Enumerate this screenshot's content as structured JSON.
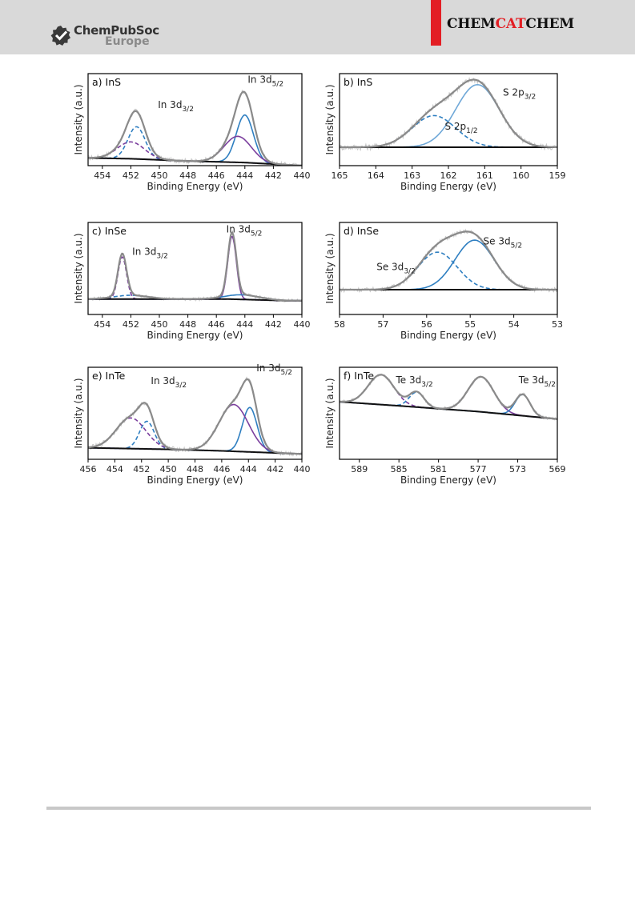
{
  "header": {
    "publisher_name": "ChemPubSoc",
    "publisher_region": "Europe",
    "journal": {
      "left": "CHEM",
      "middle": "CAT",
      "right": "CHEM"
    }
  },
  "colors": {
    "envelope": "#8a8a8a",
    "raw": "#c8c8c8",
    "background": "#111111",
    "component_blue": "#2f7fc1",
    "component_lightblue": "#6fa8d8",
    "component_purple": "#7b3f9e"
  },
  "chart_data": [
    {
      "label": "a) InS",
      "type": "line",
      "xlabel": "Binding Energy (eV)",
      "ylabel": "Intensity (a.u.)",
      "xlim": [
        455,
        440
      ],
      "ylim": [
        0,
        1.2
      ],
      "xticks": [
        454,
        452,
        450,
        448,
        446,
        444,
        442,
        440
      ],
      "tick_labels": [
        "454",
        "452",
        "450",
        "448",
        "446",
        "444",
        "442",
        "440"
      ],
      "background": [
        [
          455,
          0.1
        ],
        [
          452,
          0.09
        ],
        [
          448,
          0.06
        ],
        [
          444,
          0.04
        ],
        [
          441,
          0.01
        ],
        [
          440,
          0.0
        ]
      ],
      "peaks": [
        {
          "center": 451.6,
          "height": 0.42,
          "width": 0.6,
          "style": "dashed",
          "color": "blue"
        },
        {
          "center": 452.0,
          "height": 0.22,
          "width": 0.95,
          "style": "dashed",
          "color": "purple"
        },
        {
          "center": 444.0,
          "height": 0.62,
          "width": 0.6,
          "style": "solid",
          "color": "blue"
        },
        {
          "center": 444.5,
          "height": 0.34,
          "width": 0.95,
          "style": "solid",
          "color": "purple"
        }
      ],
      "noise": 0.03,
      "annotations": [
        {
          "base": "In 3d",
          "sub": "3/2",
          "x": 450.1,
          "y": 0.75
        },
        {
          "base": "In 3d",
          "sub": "5/2",
          "x": 443.8,
          "y": 1.08
        }
      ]
    },
    {
      "label": "b) InS",
      "type": "line",
      "xlabel": "Binding Energy (eV)",
      "ylabel": "Intensity (a.u.)",
      "xlim": [
        165,
        159
      ],
      "ylim": [
        -0.25,
        1.0
      ],
      "xticks": [
        165,
        164,
        163,
        162,
        161,
        160,
        159
      ],
      "tick_labels": [
        "165",
        "164",
        "163",
        "162",
        "161",
        "160",
        "159"
      ],
      "background": [
        [
          165,
          0.0
        ],
        [
          159,
          0.0
        ]
      ],
      "peaks": [
        {
          "center": 161.2,
          "height": 0.85,
          "width": 0.6,
          "style": "solid",
          "color": "lightblue"
        },
        {
          "center": 162.4,
          "height": 0.43,
          "width": 0.6,
          "style": "dashed",
          "color": "blue"
        }
      ],
      "noise": 0.04,
      "annotations": [
        {
          "base": "S 2p",
          "sub": "3/2",
          "x": 160.5,
          "y": 0.7
        },
        {
          "base": "S 2p",
          "sub": "1/2",
          "x": 162.1,
          "y": 0.24
        }
      ]
    },
    {
      "label": "c) InSe",
      "type": "line",
      "xlabel": "Binding Energy (eV)",
      "ylabel": "Intensity (a.u.)",
      "xlim": [
        455,
        440
      ],
      "ylim": [
        -0.2,
        1.0
      ],
      "xticks": [
        454,
        452,
        450,
        448,
        446,
        444,
        442,
        440
      ],
      "tick_labels": [
        "454",
        "452",
        "450",
        "448",
        "446",
        "444",
        "442",
        "440"
      ],
      "background": [
        [
          455,
          0.0
        ],
        [
          452,
          0.0
        ],
        [
          445,
          0.0
        ],
        [
          441,
          -0.02
        ],
        [
          440,
          -0.02
        ]
      ],
      "peaks": [
        {
          "center": 452.6,
          "height": 0.55,
          "width": 0.3,
          "style": "dashed",
          "color": "purple"
        },
        {
          "center": 452.0,
          "height": 0.05,
          "width": 1.2,
          "style": "dashed",
          "color": "blue"
        },
        {
          "center": 444.9,
          "height": 0.82,
          "width": 0.3,
          "style": "solid",
          "color": "purple"
        },
        {
          "center": 444.2,
          "height": 0.06,
          "width": 1.2,
          "style": "solid",
          "color": "blue"
        }
      ],
      "noise": 0.02,
      "annotations": [
        {
          "base": "In 3d",
          "sub": "3/2",
          "x": 451.9,
          "y": 0.58
        },
        {
          "base": "In 3d",
          "sub": "5/2",
          "x": 445.3,
          "y": 0.87
        }
      ]
    },
    {
      "label": "d) InSe",
      "type": "line",
      "xlabel": "Binding Energy (eV)",
      "ylabel": "Intensity (a.u.)",
      "xlim": [
        58,
        53
      ],
      "ylim": [
        -0.35,
        0.95
      ],
      "xticks": [
        58,
        57,
        56,
        55,
        54,
        53
      ],
      "tick_labels": [
        "58",
        "57",
        "56",
        "55",
        "54",
        "53"
      ],
      "background": [
        [
          58,
          0.0
        ],
        [
          53,
          0.0
        ]
      ],
      "peaks": [
        {
          "center": 54.9,
          "height": 0.7,
          "width": 0.45,
          "style": "solid",
          "color": "blue"
        },
        {
          "center": 55.75,
          "height": 0.53,
          "width": 0.45,
          "style": "dashed",
          "color": "blue"
        }
      ],
      "noise": 0.03,
      "annotations": [
        {
          "base": "Se 3d",
          "sub": "5/2",
          "x": 54.7,
          "y": 0.64
        },
        {
          "base": "Se 3d",
          "sub": "3/2",
          "x": 57.15,
          "y": 0.28
        }
      ]
    },
    {
      "label": "e) InTe",
      "type": "line",
      "xlabel": "Binding Energy (eV)",
      "ylabel": "Intensity (a.u.)",
      "xlim": [
        456,
        440
      ],
      "ylim": [
        -0.15,
        1.05
      ],
      "xticks": [
        456,
        454,
        452,
        450,
        448,
        446,
        444,
        442,
        440
      ],
      "tick_labels": [
        "456",
        "454",
        "452",
        "450",
        "448",
        "446",
        "444",
        "442",
        "440"
      ],
      "background": [
        [
          456,
          0.0
        ],
        [
          450,
          -0.02
        ],
        [
          446,
          -0.04
        ],
        [
          440,
          -0.08
        ]
      ],
      "peaks": [
        {
          "center": 451.6,
          "height": 0.36,
          "width": 0.55,
          "style": "dashed",
          "color": "blue"
        },
        {
          "center": 452.8,
          "height": 0.4,
          "width": 1.1,
          "style": "dashed",
          "color": "purple"
        },
        {
          "center": 443.9,
          "height": 0.58,
          "width": 0.55,
          "style": "solid",
          "color": "blue"
        },
        {
          "center": 445.1,
          "height": 0.61,
          "width": 1.1,
          "style": "solid",
          "color": "purple"
        }
      ],
      "noise": 0.03,
      "annotations": [
        {
          "base": "In 3d",
          "sub": "3/2",
          "x": 451.3,
          "y": 0.83
        },
        {
          "base": "In 3d",
          "sub": "5/2",
          "x": 443.4,
          "y": 1.0
        }
      ]
    },
    {
      "label": "f) InTe",
      "type": "line",
      "xlabel": "Binding Energy (eV)",
      "ylabel": "Intensity (a.u.)",
      "xlim": [
        591,
        569
      ],
      "ylim": [
        -0.7,
        0.9
      ],
      "xticks": [
        589,
        585,
        581,
        577,
        573,
        569
      ],
      "tick_labels": [
        "589",
        "585",
        "581",
        "577",
        "573",
        "569"
      ],
      "background": [
        [
          591,
          0.3
        ],
        [
          585,
          0.23
        ],
        [
          577,
          0.13
        ],
        [
          569,
          0.0
        ]
      ],
      "peaks": [
        {
          "center": 586.8,
          "height": 0.52,
          "width": 1.3,
          "style": "dashed",
          "color": "purple"
        },
        {
          "center": 583.2,
          "height": 0.26,
          "width": 0.75,
          "style": "dashed",
          "color": "blue"
        },
        {
          "center": 576.7,
          "height": 0.61,
          "width": 1.3,
          "style": "solid",
          "color": "purple"
        },
        {
          "center": 572.5,
          "height": 0.37,
          "width": 0.75,
          "style": "solid",
          "color": "blue"
        }
      ],
      "noise": 0.03,
      "annotations": [
        {
          "base": "Te 3d",
          "sub": "3/2",
          "x": 585.3,
          "y": 0.62
        },
        {
          "base": "Te 3d",
          "sub": "5/2",
          "x": 572.9,
          "y": 0.62
        }
      ]
    }
  ]
}
